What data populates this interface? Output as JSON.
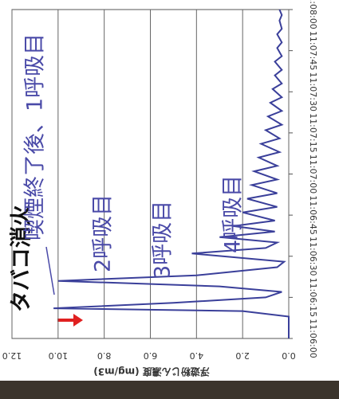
{
  "chart_data": {
    "type": "line",
    "y_label": "浮遊粉じん濃度 (mg/m3)",
    "annotations": [
      "タバコ消火",
      "喫煙終了後、1呼吸目",
      "2呼吸目",
      "3呼吸目",
      "4呼吸目"
    ],
    "x": [
      "11:06:00",
      "11:06:08",
      "11:06:10",
      "11:06:11",
      "11:06:13",
      "11:06:15",
      "11:06:17",
      "11:06:19",
      "11:06:21",
      "11:06:23",
      "11:06:26",
      "11:06:28",
      "11:06:31",
      "11:06:33",
      "11:06:35",
      "11:06:37",
      "11:06:39",
      "11:06:41",
      "11:06:43",
      "11:06:46",
      "11:06:48",
      "11:06:51",
      "11:06:53",
      "11:06:56",
      "11:06:58",
      "11:07:01",
      "11:07:03",
      "11:07:06",
      "11:07:08",
      "11:07:11",
      "11:07:13",
      "11:07:16",
      "11:07:18",
      "11:07:21",
      "11:07:23",
      "11:07:26",
      "11:07:28",
      "11:07:31",
      "11:07:33",
      "11:07:36",
      "11:07:38",
      "11:07:41",
      "11:07:43",
      "11:07:46",
      "11:07:48",
      "11:07:51",
      "11:07:53",
      "11:07:56",
      "11:07:58",
      "11:08:00"
    ],
    "series": [
      {
        "color": "#3a3f9a",
        "values": [
          0.0,
          0.0,
          2.0,
          10.2,
          5.0,
          1.0,
          0.3,
          3.0,
          10.0,
          4.0,
          0.5,
          0.2,
          4.2,
          1.0,
          0.5,
          3.0,
          0.6,
          2.4,
          0.6,
          2.0,
          0.5,
          1.8,
          0.5,
          1.6,
          0.5,
          1.5,
          0.5,
          1.3,
          0.4,
          1.2,
          0.4,
          1.0,
          0.3,
          0.9,
          0.3,
          0.8,
          0.3,
          0.7,
          0.3,
          0.6,
          0.3,
          0.6,
          0.3,
          0.5,
          0.3,
          0.5,
          0.3,
          0.4,
          0.3,
          0.4
        ]
      }
    ],
    "xlim": [
      "11:06:00",
      "11:08:00"
    ],
    "xticks": [
      "11:06:00",
      "11:06:15",
      "11:06:30",
      "11:06:45",
      "11:07:00",
      "11:07:15",
      "11:07:30",
      "11:07:45",
      "11:08:00"
    ],
    "ylim": [
      0,
      12
    ],
    "yticks": [
      {
        "value": 0,
        "label": "0.0"
      },
      {
        "value": 2,
        "label": "2.0"
      },
      {
        "value": 4,
        "label": "4.0"
      },
      {
        "value": 6,
        "label": "6.0"
      },
      {
        "value": 8,
        "label": "8.0"
      },
      {
        "value": 10,
        "label": "10.0"
      },
      {
        "value": 12,
        "label": "12.0"
      }
    ],
    "grid": true
  }
}
